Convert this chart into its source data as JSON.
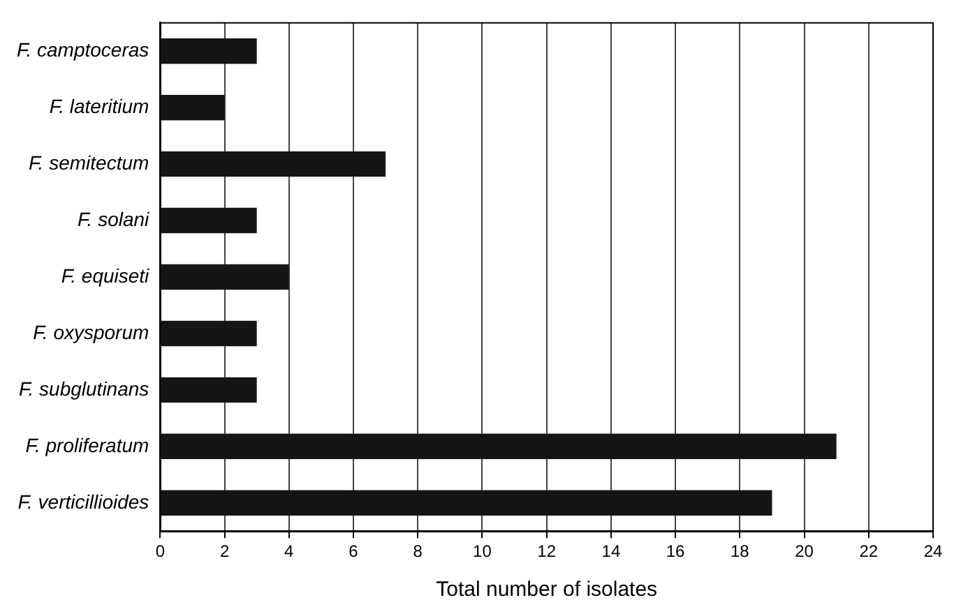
{
  "chart_data": {
    "type": "bar",
    "orientation": "horizontal",
    "xlabel": "Total number of isolates",
    "categories": [
      "F. camptoceras",
      "F. lateritium",
      "F. semitectum",
      "F. solani",
      "F. equiseti",
      "F. oxysporum",
      "F. subglutinans",
      "F. proliferatum",
      "F. verticillioides"
    ],
    "values": [
      3,
      2,
      7,
      3,
      4,
      3,
      3,
      21,
      19
    ],
    "color": "#151515",
    "xlim": [
      0,
      24
    ],
    "xticks": [
      0,
      2,
      4,
      6,
      8,
      10,
      12,
      14,
      16,
      18,
      20,
      22,
      24
    ],
    "grid": "x",
    "legend": false
  }
}
